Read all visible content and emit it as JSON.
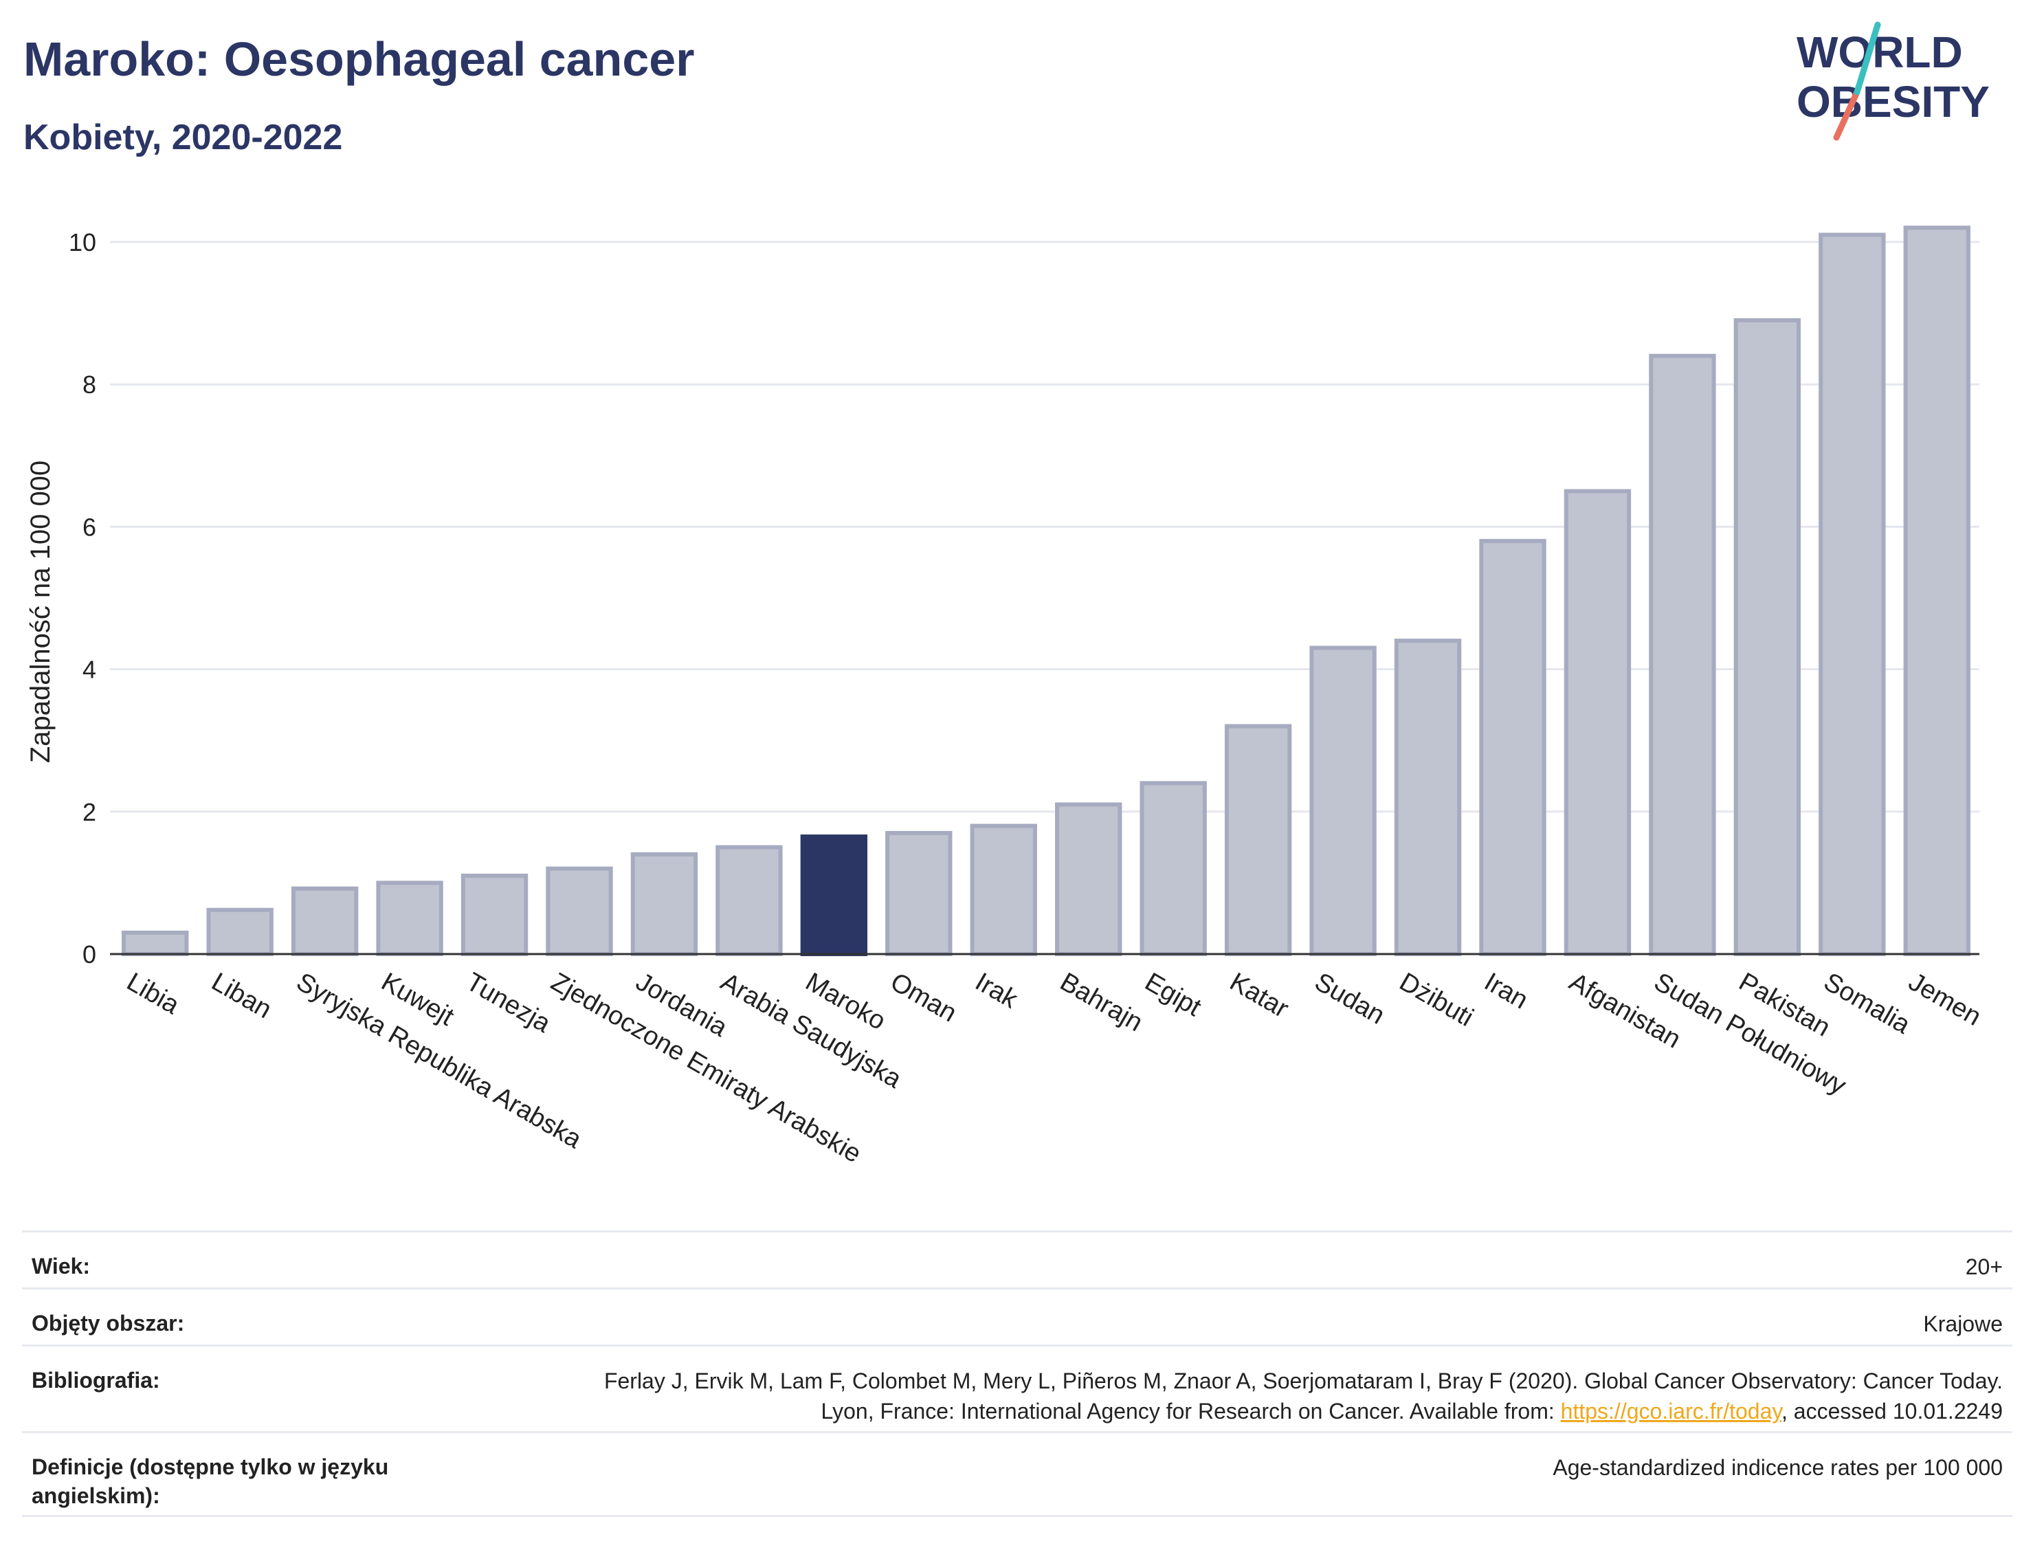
{
  "header": {
    "title": "Maroko: Oesophageal cancer",
    "subtitle": "Kobiety, 2020-2022"
  },
  "logo": {
    "line1": "WORLD",
    "line2": "OBESITY"
  },
  "chart_data": {
    "type": "bar",
    "ylabel": "Zapadalność na 100 000",
    "ylim": [
      0,
      10.5
    ],
    "yticks": [
      0,
      2,
      4,
      6,
      8,
      10
    ],
    "grid": true,
    "highlight": "Maroko",
    "colors": {
      "bar": "#c0c4d0",
      "bar_stroke": "#a6abc0",
      "highlight": "#2b3665",
      "grid": "#e5e7ee"
    },
    "categories": [
      "Libia",
      "Liban",
      "Syryjska Republika Arabska",
      "Kuwejt",
      "Tunezja",
      "Zjednoczone Emiraty Arabskie",
      "Jordania",
      "Arabia Saudyjska",
      "Maroko",
      "Oman",
      "Irak",
      "Bahrajn",
      "Egipt",
      "Katar",
      "Sudan",
      "Dżibuti",
      "Iran",
      "Afganistan",
      "Sudan Południowy",
      "Pakistan",
      "Somalia",
      "Jemen"
    ],
    "values": [
      0.3,
      0.62,
      0.92,
      1.0,
      1.1,
      1.2,
      1.4,
      1.5,
      1.65,
      1.7,
      1.8,
      2.1,
      2.4,
      3.2,
      4.3,
      4.4,
      5.8,
      6.5,
      8.4,
      8.9,
      10.1,
      10.2
    ]
  },
  "info": {
    "age_label": "Wiek:",
    "age_value": "20+",
    "area_label": "Objęty obszar:",
    "area_value": "Krajowe",
    "bib_label": "Bibliografia:",
    "bib_text_1": "Ferlay J, Ervik M, Lam F, Colombet M, Mery L, Piñeros M, Znaor A, Soerjomataram I, Bray F (2020). Global Cancer Observatory: Cancer Today. Lyon, France: International Agency for Research on Cancer. Available from: ",
    "bib_link": "https://gco.iarc.fr/today",
    "bib_text_2": ", accessed 10.01.2249",
    "def_label": "Definicje (dostępne tylko w języku angielskim):",
    "def_value": "Age-standardized indicence rates per 100 000"
  }
}
